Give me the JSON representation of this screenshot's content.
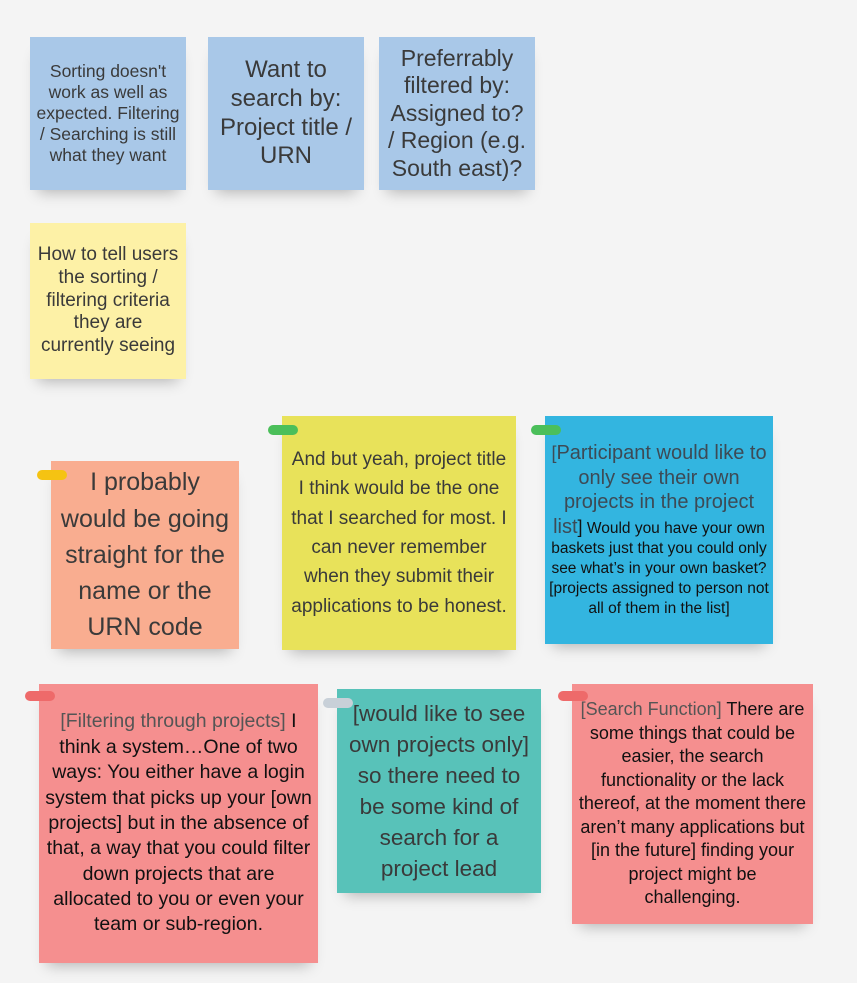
{
  "colors": {
    "background": "#f4f4f4",
    "blue_note": "#a9c8e8",
    "yellow_note": "#fdf1a6",
    "orange_note": "#f9ad90",
    "olive_note": "#e8e25a",
    "cyan_note": "#33b5e0",
    "pink_note": "#f58f8f",
    "teal_note": "#58c2b9",
    "tag_yellow": "#f5c312",
    "tag_green": "#4bbf5a",
    "tag_red": "#ee6a6a",
    "tag_grey": "#c8d0d8"
  },
  "notes": {
    "sorting": {
      "text": "Sorting doesn't work as well as expected. Filtering / Searching is still what they want"
    },
    "search_by": {
      "text": "Want to search by: Project title / URN"
    },
    "filtered_by": {
      "text": "Preferrably filtered by: Assigned to? / Region (e.g. South east)?"
    },
    "tell_users": {
      "text": "How to tell users the sorting / filtering criteria they are currently seeing"
    },
    "name_urn": {
      "tag_icon": "yellow-tag-icon",
      "text": "I probably would be going straight for the name or the URN code"
    },
    "project_title": {
      "tag_icon": "green-tag-icon",
      "text": "And but yeah, project title I think would be the one that I searched for most. I can never remember when they submit their applications to be honest."
    },
    "own_projects": {
      "tag_icon": "green-tag-icon",
      "bracket_open": "[",
      "heading": "Participant would like to only see their own projects in the project list",
      "bracket_close": "]",
      "body": " Would you have your own baskets just that you could only see what’s in your own basket? [projects assigned to person not all of them in the list]"
    },
    "filtering_through": {
      "tag_icon": "red-tag-icon",
      "bracket_open": "[",
      "heading": "Filtering through projects]",
      "body": " I think a system…One of two ways: You either have a login system that picks up your [own projects] but in the absence of that, a way that you could filter down projects that are allocated to you or even your team or sub-region."
    },
    "own_projects_only": {
      "tag_icon": "grey-tag-icon",
      "bracket_open": "[",
      "heading": "would like to see own projects only]",
      "body": " so there need to be some kind of search for a project lead"
    },
    "search_function": {
      "tag_icon": "red-tag-icon",
      "bracket_open": "[",
      "heading": "Search Function]",
      "body": " There are some things that could be easier, the search functionality or the lack thereof, at the moment there aren’t many applications but [in the future] finding your project might be challenging."
    }
  }
}
